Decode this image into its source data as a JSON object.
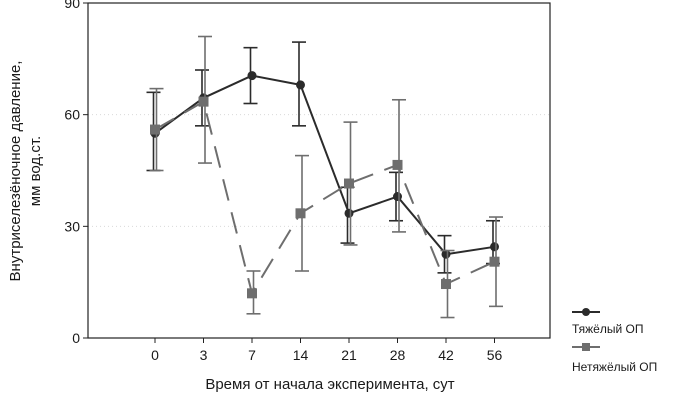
{
  "chart_data": {
    "type": "line",
    "xlabel": "Время от начала эксперимента, сут",
    "ylabel_line1": "Внутриселезёночное давление,",
    "ylabel_line2": "мм вод.ст.",
    "categories": [
      "0",
      "3",
      "7",
      "14",
      "21",
      "28",
      "42",
      "56"
    ],
    "ylim": [
      0,
      90
    ],
    "yticks": [
      "0",
      "30",
      "60",
      "90"
    ],
    "grid": true,
    "legend_position": "bottom-right",
    "series": [
      {
        "name": "Тяжёлый ОП",
        "color": "#2b2b2b",
        "line_style": "solid",
        "marker": "circle",
        "values": [
          55,
          64.5,
          70.5,
          68,
          33.5,
          38,
          22.5,
          24.5
        ],
        "err_low": [
          45,
          57,
          63,
          57,
          25.5,
          31.5,
          17.5,
          20
        ],
        "err_high": [
          66,
          72,
          78,
          79.5,
          40.5,
          44.5,
          27.5,
          31.5
        ]
      },
      {
        "name": "Нетяжёлый ОП",
        "color": "#6e6e6e",
        "line_style": "dashed",
        "marker": "square",
        "values": [
          56,
          63.5,
          12,
          33.5,
          41.5,
          46.5,
          14.5,
          20.5
        ],
        "err_low": [
          45,
          47,
          6.5,
          18,
          25,
          28.5,
          5.5,
          8.5
        ],
        "err_high": [
          67,
          81,
          18,
          49,
          58,
          64,
          23.5,
          32.5
        ]
      }
    ]
  }
}
